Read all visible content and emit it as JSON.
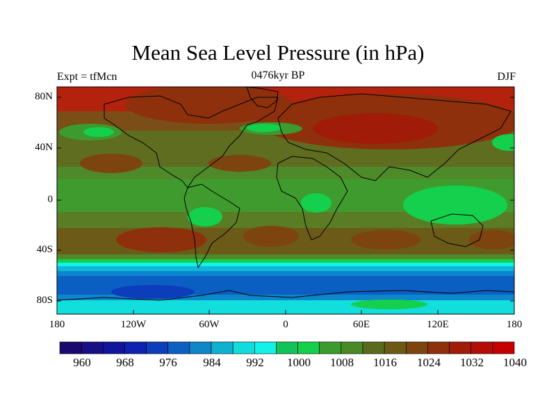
{
  "header": {
    "title": "Mean Sea Level Pressure (in hPa)",
    "left": "Expt = tfMcn",
    "center": "0476kyr BP",
    "right": "DJF"
  },
  "axes": {
    "y_ticks": [
      "80N",
      "40N",
      "0",
      "40S",
      "80S"
    ],
    "x_ticks": [
      "180",
      "120W",
      "60W",
      "0",
      "60E",
      "120E",
      "180"
    ]
  },
  "colorbar": {
    "labels": [
      "960",
      "968",
      "976",
      "984",
      "992",
      "1000",
      "1008",
      "1016",
      "1024",
      "1032",
      "1040"
    ],
    "colors": [
      "#1b0a6e",
      "#160f86",
      "#10169b",
      "#0d22b0",
      "#0c3dbb",
      "#0d5fc2",
      "#0f86c8",
      "#0eb2d0",
      "#10dcdc",
      "#13f2e8",
      "#10c45a",
      "#14d04c",
      "#3c9a2e",
      "#4a8a26",
      "#5a6a1c",
      "#6c5a14",
      "#7d4410",
      "#8e300c",
      "#a01c08",
      "#b20e05",
      "#c40000"
    ]
  }
}
